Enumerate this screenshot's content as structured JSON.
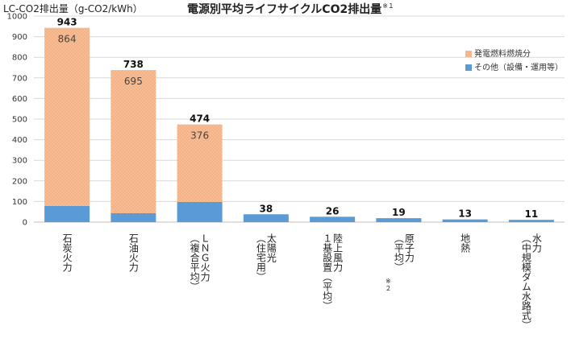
{
  "chart_data": {
    "type": "bar",
    "stacked": true,
    "title": "電源別平均ライフサイクルCO2排出量",
    "title_note": "※１",
    "ylabel": "LC-CO2排出量（g-CO2/kWh）",
    "ylim": [
      0,
      1000
    ],
    "yticks": [
      0,
      100,
      200,
      300,
      400,
      500,
      600,
      700,
      800,
      900,
      1000
    ],
    "grid": true,
    "legend_position": "top-right",
    "categories": [
      "石炭火力",
      "石油火力",
      "ＬＮＧ火力（複合平均）",
      "太陽光（住宅用）",
      "陸上風力１基設置（平均）",
      "原子力（平均）※２",
      "地熱",
      "水力（中規模ダム水路式）"
    ],
    "category_lines": [
      [
        "石炭火力"
      ],
      [
        "石油火力"
      ],
      [
        "ＬＮＧ火力",
        "（複合平均）"
      ],
      [
        "太陽光",
        "（住宅用）"
      ],
      [
        "陸上風力",
        "１基設置（平均）"
      ],
      [
        "原子力",
        "（平均）",
        "※２"
      ],
      [
        "地熱"
      ],
      [
        "水力",
        "（中規模ダム水路式）"
      ]
    ],
    "series": [
      {
        "name": "その他（設備・運用等）",
        "color": "#5b9bd5",
        "values": [
          79,
          43,
          98,
          38,
          26,
          19,
          13,
          11
        ]
      },
      {
        "name": "発電燃料燃焼分",
        "color": "#f4b183",
        "values": [
          864,
          695,
          376,
          0,
          0,
          0,
          0,
          0
        ],
        "pattern": "dotted"
      }
    ],
    "totals": [
      943,
      738,
      474,
      38,
      26,
      19,
      13,
      11
    ],
    "fuel_labels": [
      "864",
      "695",
      "376",
      null,
      null,
      null,
      null,
      null
    ]
  }
}
